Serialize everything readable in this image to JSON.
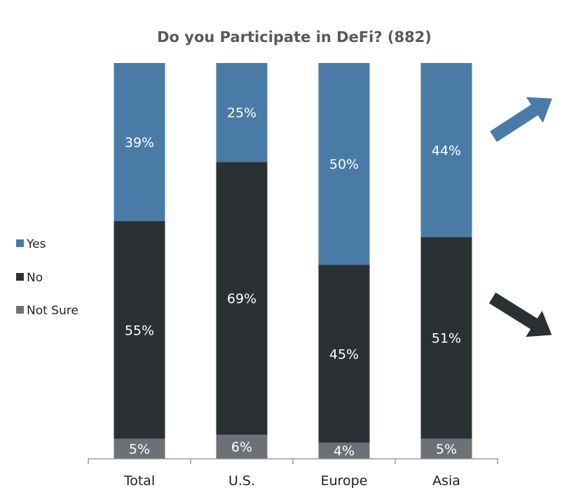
{
  "chart_data": {
    "type": "bar",
    "stacked": true,
    "orientation": "vertical",
    "title": "Do you Participate in DeFi? (882)",
    "xlabel": "",
    "ylabel": "",
    "ylim": [
      0,
      100
    ],
    "grid": false,
    "legend_position": "left",
    "categories": [
      "Total",
      "U.S.",
      "Europe",
      "Asia"
    ],
    "series": [
      {
        "name": "Not Sure",
        "color": "#6d7177",
        "values": [
          5,
          6,
          4,
          5
        ],
        "labels": [
          "5%",
          "6%",
          "4%",
          "5%"
        ]
      },
      {
        "name": "No",
        "color": "#2b3133",
        "values": [
          55,
          69,
          45,
          51
        ],
        "labels": [
          "55%",
          "69%",
          "45%",
          "51%"
        ]
      },
      {
        "name": "Yes",
        "color": "#4a7ba7",
        "values": [
          39,
          25,
          50,
          44
        ],
        "labels": [
          "39%",
          "25%",
          "50%",
          "44%"
        ]
      }
    ],
    "legend_order": [
      "Yes",
      "No",
      "Not Sure"
    ],
    "annotations": [
      {
        "type": "arrow-up-right-icon",
        "color": "#4a7ba7"
      },
      {
        "type": "arrow-down-right-icon",
        "color": "#2b3133"
      }
    ]
  }
}
